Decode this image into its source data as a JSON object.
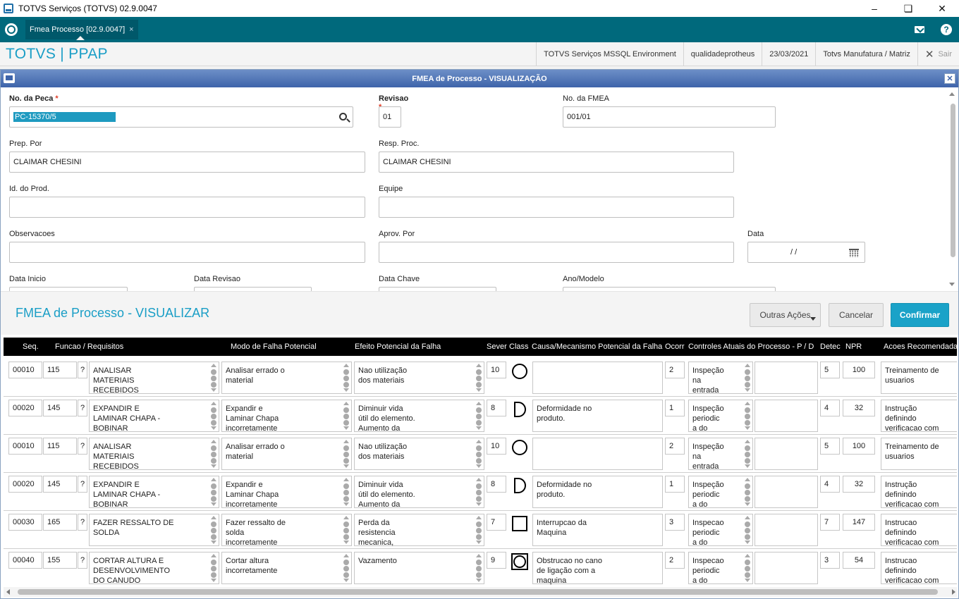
{
  "window": {
    "title": "TOTVS Serviços (TOTVS) 02.9.0047"
  },
  "tabs": {
    "active": "Fmea Processo [02.9.0047]",
    "close": "×"
  },
  "header": {
    "brand": "TOTVS | PPAP",
    "environment": "TOTVS Serviços MSSQL Environment",
    "user": "qualidadeprotheus",
    "date": "23/03/2021",
    "company": "Totvs Manufatura / Matriz",
    "exit": "Sair"
  },
  "dialog": {
    "title": "FMEA de Processo - VISUALIZAÇÃO"
  },
  "form": {
    "peca": {
      "label": "No. da Peca",
      "star": "*",
      "value": "PC-15370/5"
    },
    "revisao": {
      "label": "Revisao",
      "star": "*",
      "value": "01"
    },
    "nfmea": {
      "label": "No. da FMEA",
      "value": "001/01"
    },
    "prep": {
      "label": "Prep. Por",
      "value": "CLAIMAR CHESINI"
    },
    "resp": {
      "label": "Resp. Proc.",
      "value": "CLAIMAR CHESINI"
    },
    "idprod": {
      "label": "Id. do Prod.",
      "value": ""
    },
    "equipe": {
      "label": "Equipe",
      "value": ""
    },
    "obs": {
      "label": "Observacoes",
      "value": ""
    },
    "aprov": {
      "label": "Aprov. Por",
      "value": ""
    },
    "data": {
      "label": "Data",
      "value": "/ /"
    },
    "datainicio": {
      "label": "Data Inicio"
    },
    "datarevisao": {
      "label": "Data Revisao"
    },
    "datachave": {
      "label": "Data Chave"
    },
    "anomodelo": {
      "label": "Ano/Modelo"
    }
  },
  "section": {
    "title": "FMEA de Processo - VISUALIZAR",
    "other_actions": "Outras Ações",
    "cancel": "Cancelar",
    "confirm": "Confirmar"
  },
  "grid": {
    "columns": [
      "Seq.",
      "Funcao / Requisitos",
      "Modo de Falha Potencial",
      "Efeito Potencial da Falha",
      "Sever",
      "Class",
      "Causa/Mecanismo Potencial da Falha",
      "Ocorr",
      "Controles Atuais do Processo - P / D",
      "Detec",
      "NPR",
      "Acoes Recomendadas"
    ],
    "rows": [
      {
        "seq": "00010",
        "code": "115",
        "q": "?",
        "funcao": "ANALISAR\nMATERIAIS\nRECEBIDOS",
        "modo": "Analisar errado o\nmaterial",
        "efeito": "Nao utilização\ndos materiais",
        "sever": "10",
        "class": "circle",
        "causa": "",
        "ocorr": "2",
        "controle": "Inspeção\nna\nentrada",
        "pd": "",
        "detec": "5",
        "npr": "100",
        "acoes": "Treinamento de\nusuarios"
      },
      {
        "seq": "00020",
        "code": "145",
        "q": "?",
        "funcao": "EXPANDIR E\nLAMINAR CHAPA -\nBOBINAR",
        "modo": "Expandir e\nLaminar Chapa\nincorretamente",
        "efeito": "Diminuir vida\nútil do elemento.\nAumento da",
        "sever": "8",
        "class": "d-shape",
        "causa": "Deformidade no\nproduto.",
        "ocorr": "1",
        "controle": "Inspeção\nperiodic\na do",
        "pd": "",
        "detec": "4",
        "npr": "32",
        "acoes": "Instrução\ndefinindo\nverificacao com"
      },
      {
        "seq": "00010",
        "code": "115",
        "q": "?",
        "funcao": "ANALISAR\nMATERIAIS\nRECEBIDOS",
        "modo": "Analisar errado o\nmaterial",
        "efeito": "Nao utilização\ndos materiais",
        "sever": "10",
        "class": "circle",
        "causa": "",
        "ocorr": "2",
        "controle": "Inspeção\nna\nentrada",
        "pd": "",
        "detec": "5",
        "npr": "100",
        "acoes": "Treinamento de\nusuarios"
      },
      {
        "seq": "00020",
        "code": "145",
        "q": "?",
        "funcao": "EXPANDIR E\nLAMINAR CHAPA -\nBOBINAR",
        "modo": "Expandir e\nLaminar Chapa\nincorretamente",
        "efeito": "Diminuir vida\nútil do elemento.\nAumento da",
        "sever": "8",
        "class": "d-shape",
        "causa": "Deformidade no\nproduto.",
        "ocorr": "1",
        "controle": "Inspeção\nperiodic\na do",
        "pd": "",
        "detec": "4",
        "npr": "32",
        "acoes": "Instrução\ndefinindo\nverificacao com"
      },
      {
        "seq": "00030",
        "code": "165",
        "q": "?",
        "funcao": "FAZER RESSALTO DE\nSOLDA",
        "modo": "Fazer ressalto de\nsolda\nincorretamente",
        "efeito": "Perda da\nresistencia\nmecanica,",
        "sever": "7",
        "class": "square",
        "causa": "Interrupcao da\nMaquina",
        "ocorr": "3",
        "controle": "Inspecao\nperiodic\na do",
        "pd": "",
        "detec": "7",
        "npr": "147",
        "acoes": "Instrucao\ndefinindo\nverificacao com"
      },
      {
        "seq": "00040",
        "code": "155",
        "q": "?",
        "funcao": "CORTAR ALTURA E\nDESENVOLVIMENTO\nDO CANUDO",
        "modo": "Cortar altura\nincorretamente",
        "efeito": "Vazamento",
        "sever": "9",
        "class": "square-circle",
        "causa": "Obstrucao no cano\nde ligação com a\nmaquina",
        "ocorr": "2",
        "controle": "Inspecao\nperiodic\na do",
        "pd": "",
        "detec": "3",
        "npr": "54",
        "acoes": "Instrucao\ndefinindo\nverificacao com"
      }
    ]
  },
  "icons": [
    "app-icon",
    "totvs-logo-icon",
    "mail-icon",
    "help-icon",
    "search-icon",
    "calendar-icon",
    "close-icon"
  ]
}
